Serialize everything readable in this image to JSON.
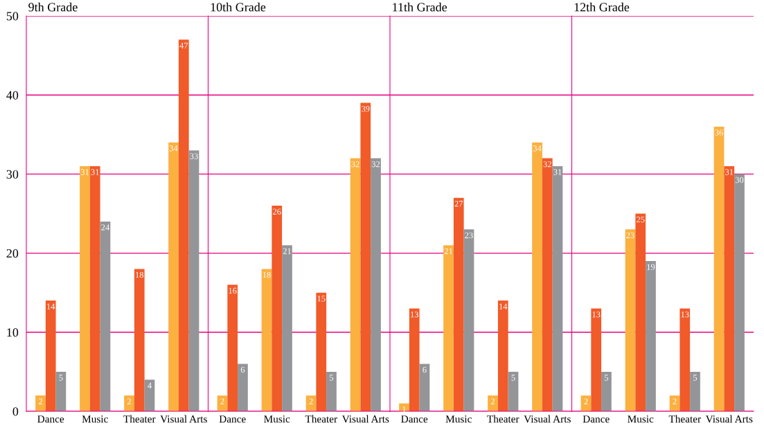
{
  "chart_data": [
    {
      "type": "bar",
      "title": "9th Grade",
      "categories": [
        "Dance",
        "Music",
        "Theater",
        "Visual Arts"
      ],
      "series": [
        {
          "color": "#fbb040",
          "values": [
            2,
            31,
            2,
            34
          ]
        },
        {
          "color": "#f15a29",
          "values": [
            14,
            31,
            18,
            47
          ]
        },
        {
          "color": "#939598",
          "values": [
            5,
            24,
            4,
            33
          ]
        }
      ],
      "ylim": [
        0,
        50
      ],
      "yticks": [
        0,
        10,
        20,
        30,
        40,
        50
      ],
      "grid": "y",
      "data_labels": true
    },
    {
      "type": "bar",
      "title": "10th Grade",
      "categories": [
        "Dance",
        "Music",
        "Theater",
        "Visual Arts"
      ],
      "series": [
        {
          "color": "#fbb040",
          "values": [
            2,
            18,
            2,
            32
          ]
        },
        {
          "color": "#f15a29",
          "values": [
            16,
            26,
            15,
            39
          ]
        },
        {
          "color": "#939598",
          "values": [
            6,
            21,
            5,
            32
          ]
        }
      ],
      "ylim": [
        0,
        50
      ],
      "yticks": [
        0,
        10,
        20,
        30,
        40,
        50
      ],
      "grid": "y",
      "data_labels": true,
      "tick_labels": "x"
    },
    {
      "type": "bar",
      "title": "11th Grade",
      "categories": [
        "Dance",
        "Music",
        "Theater",
        "Visual Arts"
      ],
      "series": [
        {
          "color": "#fbb040",
          "values": [
            1,
            21,
            2,
            34
          ]
        },
        {
          "color": "#f15a29",
          "values": [
            13,
            27,
            14,
            32
          ]
        },
        {
          "color": "#939598",
          "values": [
            6,
            23,
            5,
            31
          ]
        }
      ],
      "ylim": [
        0,
        50
      ],
      "yticks": [
        0,
        10,
        20,
        30,
        40,
        50
      ],
      "grid": "y",
      "data_labels": true,
      "tick_labels": "x"
    },
    {
      "type": "bar",
      "title": "12th Grade",
      "categories": [
        "Dance",
        "Music",
        "Theater",
        "Visual Arts"
      ],
      "series": [
        {
          "color": "#fbb040",
          "values": [
            2,
            23,
            2,
            36
          ]
        },
        {
          "color": "#f15a29",
          "values": [
            13,
            25,
            13,
            31
          ]
        },
        {
          "color": "#939598",
          "values": [
            5,
            19,
            5,
            30
          ]
        }
      ],
      "ylim": [
        0,
        50
      ],
      "yticks": [
        0,
        10,
        20,
        30,
        40,
        50
      ],
      "grid": "y",
      "data_labels": true,
      "tick_labels": "x"
    }
  ]
}
